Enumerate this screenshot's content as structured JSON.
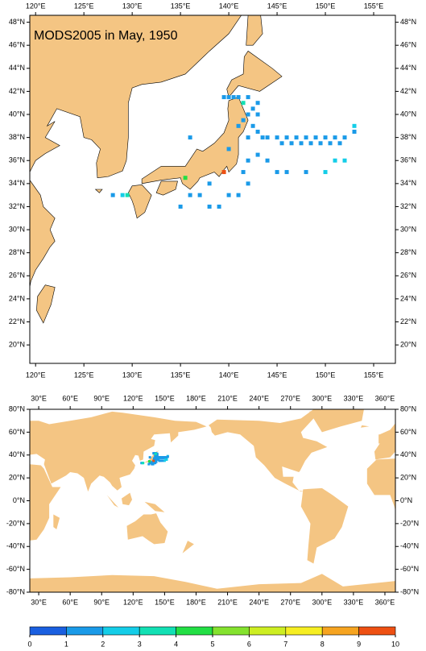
{
  "title": "MODS2005 in May, 1950",
  "land_color": "#f4c583",
  "maps": [
    {
      "lonlim": [
        119.4,
        157.25
      ],
      "latlim": [
        18.4,
        48.6
      ],
      "lonticks": [
        {
          "value": 120,
          "label": "120°E"
        },
        {
          "value": 125,
          "label": "125°E"
        },
        {
          "value": 130,
          "label": "130°E"
        },
        {
          "value": 135,
          "label": "135°E"
        },
        {
          "value": 140,
          "label": "140°E"
        },
        {
          "value": 145,
          "label": "145°E"
        },
        {
          "value": 150,
          "label": "150°E"
        },
        {
          "value": 155,
          "label": "155°E"
        }
      ],
      "latticks": [
        {
          "value": 20,
          "label": "20°N"
        },
        {
          "value": 22,
          "label": "22°N"
        },
        {
          "value": 24,
          "label": "24°N"
        },
        {
          "value": 26,
          "label": "26°N"
        },
        {
          "value": 28,
          "label": "28°N"
        },
        {
          "value": 30,
          "label": "30°N"
        },
        {
          "value": 32,
          "label": "32°N"
        },
        {
          "value": 34,
          "label": "34°N"
        },
        {
          "value": 36,
          "label": "36°N"
        },
        {
          "value": 38,
          "label": "38°N"
        },
        {
          "value": 40,
          "label": "40°N"
        },
        {
          "value": 42,
          "label": "42°N"
        },
        {
          "value": 44,
          "label": "44°N"
        },
        {
          "value": 46,
          "label": "46°N"
        },
        {
          "value": 48,
          "label": "48°N"
        }
      ]
    },
    {
      "lonlim": [
        21.5,
        370
      ],
      "latlim": [
        -80,
        80
      ],
      "lonticks": [
        {
          "value": 30,
          "label": "30°E"
        },
        {
          "value": 60,
          "label": "60°E"
        },
        {
          "value": 90,
          "label": "90°E"
        },
        {
          "value": 120,
          "label": "120°E"
        },
        {
          "value": 150,
          "label": "150°E"
        },
        {
          "value": 180,
          "label": "180°E"
        },
        {
          "value": 210,
          "label": "210°E"
        },
        {
          "value": 240,
          "label": "240°E"
        },
        {
          "value": 270,
          "label": "270°E"
        },
        {
          "value": 300,
          "label": "300°E"
        },
        {
          "value": 330,
          "label": "330°E"
        },
        {
          "value": 360,
          "label": "360°E"
        }
      ],
      "latticks": [
        {
          "value": 80,
          "label": "80°N"
        },
        {
          "value": 60,
          "label": "60°N"
        },
        {
          "value": 40,
          "label": "40°N"
        },
        {
          "value": 20,
          "label": "20°N"
        },
        {
          "value": 0,
          "label": "0°N"
        },
        {
          "value": -20,
          "label": "-20°N"
        },
        {
          "value": -40,
          "label": "-40°N"
        },
        {
          "value": -60,
          "label": "-60°N"
        },
        {
          "value": -80,
          "label": "-80°N"
        }
      ]
    }
  ],
  "points": {
    "lon": [
      139.5,
      140,
      140.5,
      141,
      142,
      143,
      142.5,
      143,
      142,
      141.5,
      142.5,
      143,
      142,
      143.5,
      144,
      145,
      146,
      147,
      148,
      149,
      150,
      151,
      152,
      145.5,
      146.5,
      147.5,
      148.5,
      149.5,
      150.5,
      151.5,
      153,
      153,
      152,
      151,
      150,
      148,
      146,
      145,
      144,
      143,
      142,
      141.5,
      142,
      141,
      140,
      139,
      138,
      137,
      136,
      135,
      138,
      139.5,
      140,
      141,
      136,
      128,
      129,
      129.5,
      135.5,
      141.5
    ],
    "lat": [
      41.5,
      41.5,
      41.5,
      41.5,
      41.5,
      41,
      40.5,
      40,
      40,
      39.5,
      39,
      38.5,
      38,
      38,
      38,
      38,
      38,
      38,
      38,
      38,
      38,
      38,
      38,
      37.5,
      37.5,
      37.5,
      37.5,
      37.5,
      37.5,
      37.5,
      39,
      38.5,
      36,
      36,
      35,
      35,
      35,
      35,
      36,
      36.5,
      36,
      35,
      34,
      33,
      33,
      32,
      32,
      33,
      33,
      32,
      34,
      35,
      37,
      39,
      38,
      33,
      33,
      33,
      34.5,
      41
    ],
    "values": [
      1,
      1,
      1,
      1,
      1,
      1,
      1,
      1,
      1,
      1,
      1,
      1,
      1,
      1,
      1,
      1,
      1,
      1,
      1,
      1,
      1,
      1,
      1,
      1,
      1,
      1,
      1,
      1,
      1,
      1,
      2,
      1,
      2,
      2,
      2,
      1,
      1,
      1,
      1,
      1,
      1,
      1,
      1,
      1,
      1,
      1,
      1,
      1,
      1,
      1,
      1,
      9,
      1,
      1,
      1,
      1,
      2,
      3,
      4,
      3
    ]
  },
  "colorbar": {
    "ticks": [
      0,
      1,
      2,
      3,
      4,
      5,
      6,
      7,
      8,
      9,
      10
    ],
    "colors": [
      "#1a5fe0",
      "#1a9ae8",
      "#14cde8",
      "#12e0b4",
      "#22df44",
      "#84e22e",
      "#cdee22",
      "#f6ee22",
      "#f6a420",
      "#ee5012"
    ]
  }
}
